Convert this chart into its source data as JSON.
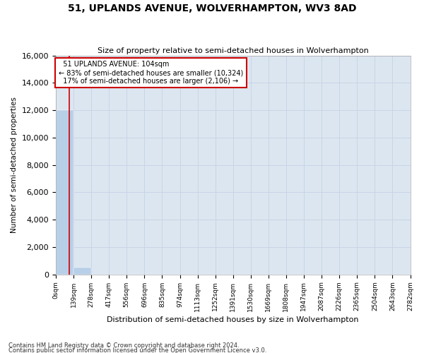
{
  "title": "51, UPLANDS AVENUE, WOLVERHAMPTON, WV3 8AD",
  "subtitle": "Size of property relative to semi-detached houses in Wolverhampton",
  "xlabel": "Distribution of semi-detached houses by size in Wolverhampton",
  "ylabel": "Number of semi-detached properties",
  "bin_edges": [
    0,
    139,
    278,
    417,
    556,
    696,
    835,
    974,
    1113,
    1252,
    1391,
    1530,
    1669,
    1808,
    1947,
    2087,
    2226,
    2365,
    2504,
    2643,
    2782
  ],
  "bar_heights": [
    12000,
    500,
    0,
    0,
    0,
    0,
    0,
    0,
    0,
    0,
    0,
    0,
    0,
    0,
    0,
    0,
    0,
    0,
    0,
    0
  ],
  "bar_color": "#b8cfe8",
  "bar_edgecolor": "#b8cfe8",
  "grid_color": "#c8d4e8",
  "background_color": "#dce6f0",
  "property_size": 104,
  "property_label": "51 UPLANDS AVENUE: 104sqm",
  "pct_smaller": 83,
  "count_smaller": 10324,
  "pct_larger": 17,
  "count_larger": 2106,
  "vline_color": "#cc0000",
  "annotation_box_edgecolor": "#cc0000",
  "ylim": [
    0,
    16000
  ],
  "yticks": [
    0,
    2000,
    4000,
    6000,
    8000,
    10000,
    12000,
    14000,
    16000
  ],
  "footnote1": "Contains HM Land Registry data © Crown copyright and database right 2024.",
  "footnote2": "Contains public sector information licensed under the Open Government Licence v3.0."
}
